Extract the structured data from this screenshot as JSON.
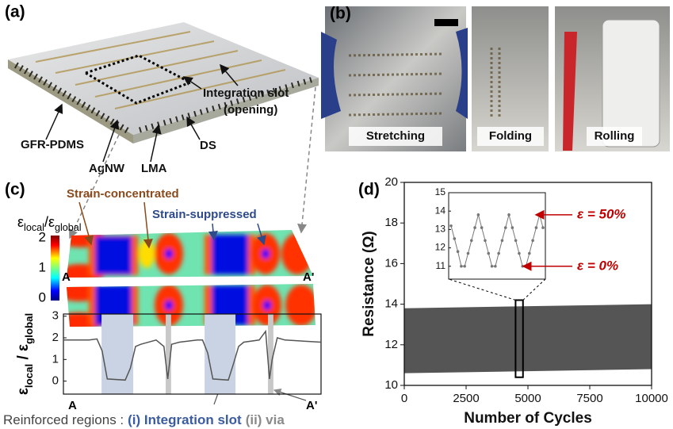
{
  "panel_labels": [
    "(a)",
    "(b)",
    "(c)",
    "(d)"
  ],
  "panel_a": {
    "labels": [
      "GFR-PDMS",
      "AgNW",
      "LMA",
      "DS"
    ],
    "integration_slot": [
      "Integration slot",
      "(opening)"
    ]
  },
  "panel_b": {
    "captions": [
      "Stretching",
      "Folding",
      "Rolling"
    ]
  },
  "panel_c": {
    "annotations": [
      "Strain-concentrated",
      "Strain-suppressed"
    ],
    "section_labels": [
      "A",
      "A'"
    ],
    "colorbar": {
      "label": [
        "ε",
        "local",
        "/ε",
        "global"
      ],
      "lim": [
        0,
        2
      ],
      "ticks": [
        0,
        1,
        2
      ]
    }
  },
  "footer": {
    "prefix": "Reinforced regions :",
    "items": [
      "(i) Integration slot",
      "(ii) via"
    ]
  },
  "chart_data": [
    {
      "type": "line",
      "ylabel": [
        "ε",
        "local",
        " / ε",
        "global"
      ],
      "color": "#555555",
      "x": [
        0,
        0.1,
        0.13,
        0.15,
        0.17,
        0.24,
        0.26,
        0.28,
        0.3,
        0.36,
        0.39,
        0.405,
        0.42,
        0.45,
        0.52,
        0.54,
        0.56,
        0.58,
        0.64,
        0.66,
        0.68,
        0.7,
        0.76,
        0.785,
        0.8,
        0.81,
        0.83,
        0.86,
        1.0
      ],
      "values": [
        1.9,
        1.9,
        1.95,
        1.4,
        0.1,
        0.05,
        0.6,
        1.6,
        1.7,
        1.9,
        1.6,
        0.1,
        1.7,
        1.8,
        1.9,
        1.9,
        1.3,
        0.1,
        0.05,
        0.8,
        1.6,
        1.8,
        1.9,
        2.3,
        0.1,
        1.0,
        2.0,
        1.9,
        1.8
      ],
      "xlim": [
        0,
        1
      ],
      "ylim": [
        -0.6,
        3.1
      ],
      "yticks": [
        0,
        1,
        2,
        3
      ],
      "shaded": [
        {
          "range": [
            0.148,
            0.271
          ],
          "color": "#c9d3e3"
        },
        {
          "range": [
            0.397,
            0.418
          ],
          "color": "#c8c8c8"
        },
        {
          "range": [
            0.548,
            0.668
          ],
          "color": "#c9d3e3"
        },
        {
          "range": [
            0.794,
            0.815
          ],
          "color": "#c8c8c8"
        }
      ]
    },
    {
      "type": "area",
      "xlabel": "Number of Cycles",
      "ylabel": "Resistance (Ω)",
      "x": [
        0,
        10000
      ],
      "series": [
        {
          "color": "#555555",
          "values": [
            13.8,
            14.0
          ]
        },
        {
          "color": "#555555",
          "values": [
            10.6,
            10.8
          ]
        }
      ],
      "xlim": [
        0,
        10000
      ],
      "ylim": [
        10,
        20
      ],
      "xticks": [
        0,
        2500,
        5000,
        7500,
        10000
      ],
      "yticks": [
        10,
        12,
        14,
        16,
        18,
        20
      ],
      "zoom_box": {
        "x": [
          4500,
          4800
        ],
        "y": [
          10.4,
          14.2
        ]
      },
      "inset": {
        "color": "#777777",
        "values": [
          13.2,
          12.5,
          11.8,
          11.0,
          11.0,
          11.7,
          12.4,
          13.1,
          13.8,
          13.1,
          12.4,
          11.7,
          11.0,
          11.0,
          11.7,
          12.4,
          13.1,
          13.8,
          13.1,
          12.4,
          11.7,
          11.0,
          11.0,
          11.7,
          12.4,
          13.1,
          13.8,
          13.1
        ],
        "ylim": [
          10.3,
          15
        ],
        "yticks": [
          11,
          12,
          13,
          14,
          15
        ],
        "annotations": [
          {
            "label": "ε = 50%",
            "value": 13.8,
            "color": "#c00000"
          },
          {
            "label": "ε = 0%",
            "value": 11.0,
            "color": "#c00000"
          }
        ]
      }
    }
  ]
}
